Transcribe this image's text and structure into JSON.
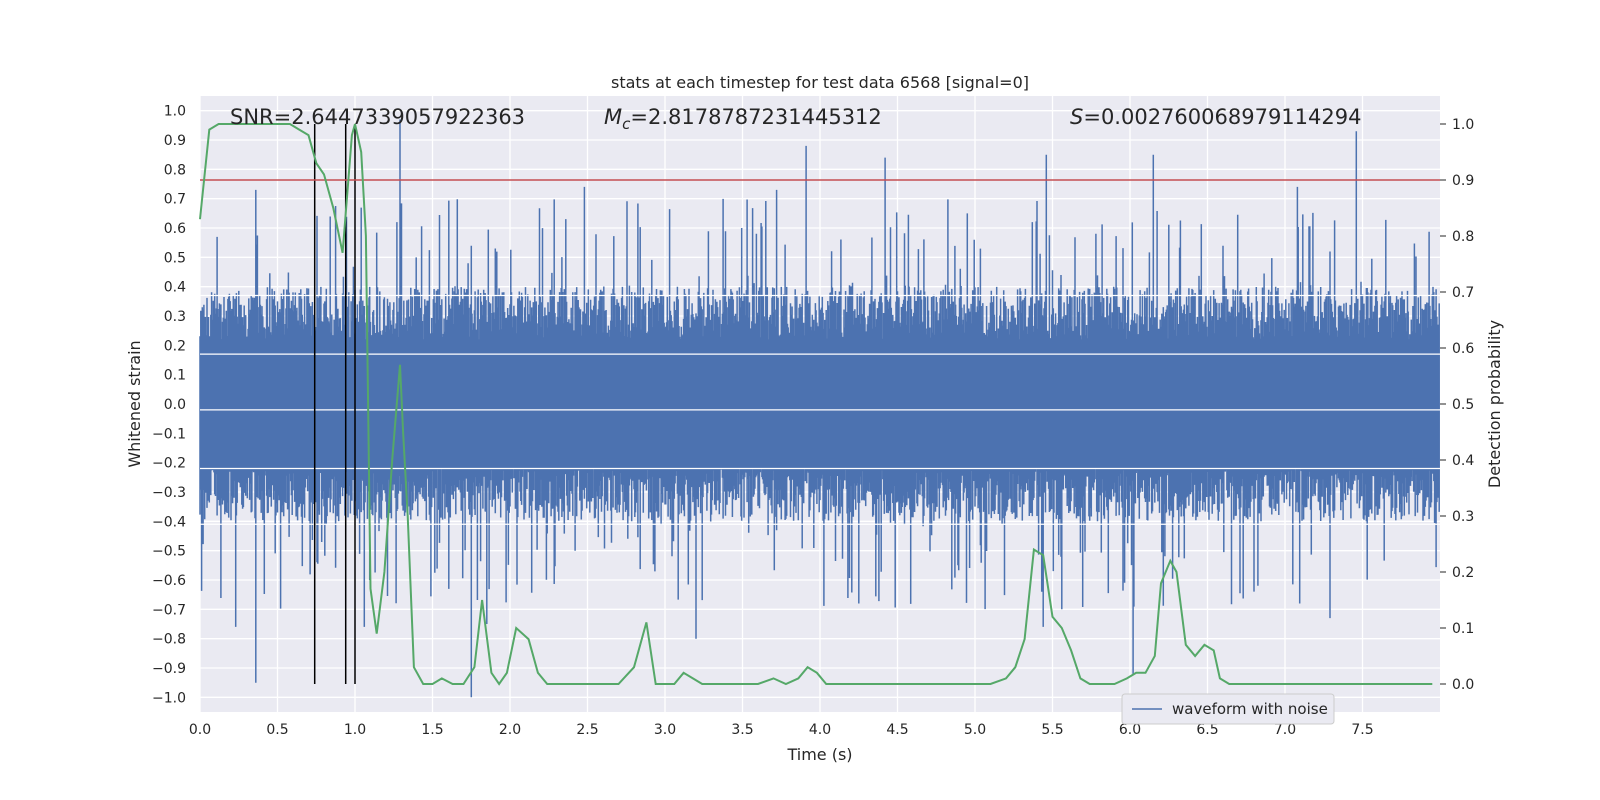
{
  "chart_data": {
    "type": "line",
    "title": "stats at each timestep for test data 6568 [signal=0]",
    "xlabel": "Time (s)",
    "ylabel_left": "Whitened strain",
    "ylabel_right": "Detection probability",
    "xlim": [
      0.0,
      8.0
    ],
    "ylim_left": [
      -1.05,
      1.05
    ],
    "ylim_right": [
      -0.05,
      1.05
    ],
    "x_ticks": [
      "0.0",
      "0.5",
      "1.0",
      "1.5",
      "2.0",
      "2.5",
      "3.0",
      "3.5",
      "4.0",
      "4.5",
      "5.0",
      "5.5",
      "6.0",
      "6.5",
      "7.0",
      "7.5"
    ],
    "x_tick_values": [
      0.0,
      0.5,
      1.0,
      1.5,
      2.0,
      2.5,
      3.0,
      3.5,
      4.0,
      4.5,
      5.0,
      5.5,
      6.0,
      6.5,
      7.0,
      7.5
    ],
    "y_left_ticks": [
      "1.0",
      "0.9",
      "0.8",
      "0.7",
      "0.6",
      "0.5",
      "0.4",
      "0.3",
      "0.2",
      "0.1",
      "0.0",
      "−0.1",
      "−0.2",
      "−0.3",
      "−0.4",
      "−0.5",
      "−0.6",
      "−0.7",
      "−0.8",
      "−0.9",
      "−1.0"
    ],
    "y_left_tick_values": [
      1.0,
      0.9,
      0.8,
      0.7,
      0.6,
      0.5,
      0.4,
      0.3,
      0.2,
      0.1,
      0.0,
      -0.1,
      -0.2,
      -0.3,
      -0.4,
      -0.5,
      -0.6,
      -0.7,
      -0.8,
      -0.9,
      -1.0
    ],
    "y_right_ticks": [
      "1.0",
      "0.9",
      "0.8",
      "0.7",
      "0.6",
      "0.5",
      "0.4",
      "0.3",
      "0.2",
      "0.1",
      "0.0"
    ],
    "y_right_tick_values": [
      1.0,
      0.9,
      0.8,
      0.7,
      0.6,
      0.5,
      0.4,
      0.3,
      0.2,
      0.1,
      0.0
    ],
    "annotations": {
      "snr": "SNR=2.6447339057922363",
      "mc_symbol": "M",
      "mc_sub": "c",
      "mc_value": "=2.8178787231445312",
      "s_symbol": "S",
      "s_value": "=0.002760068979114294"
    },
    "threshold": {
      "value": 0.9,
      "axis": "right",
      "color": "#c44e52"
    },
    "vertical_markers": [
      0.74,
      0.94,
      1.0
    ],
    "waveform": {
      "name": "waveform with noise",
      "color": "#4c72b0",
      "sample_rate": 200,
      "typical_max": 0.4,
      "typical_min": -0.4,
      "spikes": [
        [
          1.29,
          0.97
        ],
        [
          3.91,
          0.88
        ],
        [
          4.42,
          0.84
        ],
        [
          5.46,
          0.85
        ],
        [
          6.15,
          0.85
        ],
        [
          7.46,
          0.93
        ],
        [
          0.36,
          0.73
        ],
        [
          2.48,
          0.74
        ],
        [
          7.08,
          0.74
        ],
        [
          3.72,
          0.73
        ],
        [
          1.75,
          -1.0
        ],
        [
          6.02,
          -0.92
        ],
        [
          0.36,
          -0.95
        ],
        [
          1.85,
          -0.75
        ],
        [
          3.2,
          -0.8
        ],
        [
          0.23,
          -0.76
        ],
        [
          1.06,
          -0.76
        ],
        [
          5.44,
          -0.76
        ],
        [
          7.29,
          -0.73
        ]
      ]
    },
    "detection_probability": {
      "name": "detection probability",
      "color": "#55a868",
      "x": [
        0.0,
        0.06,
        0.12,
        0.2,
        0.3,
        0.4,
        0.5,
        0.58,
        0.64,
        0.7,
        0.75,
        0.8,
        0.86,
        0.92,
        0.98,
        1.0,
        1.04,
        1.07,
        1.1,
        1.14,
        1.19,
        1.24,
        1.29,
        1.31,
        1.34,
        1.38,
        1.44,
        1.5,
        1.56,
        1.63,
        1.7,
        1.77,
        1.82,
        1.88,
        1.93,
        1.98,
        2.04,
        2.12,
        2.18,
        2.24,
        2.3,
        2.4,
        2.5,
        2.6,
        2.7,
        2.8,
        2.88,
        2.94,
        3.0,
        3.06,
        3.12,
        3.18,
        3.24,
        3.3,
        3.4,
        3.5,
        3.6,
        3.7,
        3.78,
        3.86,
        3.92,
        3.98,
        4.04,
        4.1,
        4.2,
        4.3,
        4.4,
        4.6,
        4.8,
        5.0,
        5.1,
        5.2,
        5.26,
        5.32,
        5.38,
        5.44,
        5.5,
        5.56,
        5.62,
        5.68,
        5.74,
        5.8,
        5.9,
        5.98,
        6.04,
        6.1,
        6.16,
        6.2,
        6.26,
        6.3,
        6.36,
        6.42,
        6.48,
        6.54,
        6.58,
        6.64,
        6.7,
        6.76,
        6.8,
        6.9,
        7.0,
        7.1,
        7.3,
        7.5,
        7.7,
        7.85,
        7.95
      ],
      "y": [
        0.83,
        0.99,
        1.0,
        1.0,
        1.0,
        1.0,
        1.0,
        1.0,
        0.99,
        0.98,
        0.93,
        0.91,
        0.85,
        0.77,
        0.98,
        1.0,
        0.95,
        0.8,
        0.17,
        0.09,
        0.2,
        0.4,
        0.57,
        0.45,
        0.3,
        0.03,
        0.0,
        0.0,
        0.01,
        0.0,
        0.0,
        0.03,
        0.15,
        0.02,
        0.0,
        0.02,
        0.1,
        0.08,
        0.02,
        0.0,
        0.0,
        0.0,
        0.0,
        0.0,
        0.0,
        0.03,
        0.11,
        0.0,
        0.0,
        0.0,
        0.02,
        0.01,
        0.0,
        0.0,
        0.0,
        0.0,
        0.0,
        0.01,
        0.0,
        0.01,
        0.03,
        0.02,
        0.0,
        0.0,
        0.0,
        0.0,
        0.0,
        0.0,
        0.0,
        0.0,
        0.0,
        0.01,
        0.03,
        0.08,
        0.24,
        0.23,
        0.12,
        0.1,
        0.06,
        0.01,
        0.0,
        0.0,
        0.0,
        0.01,
        0.02,
        0.02,
        0.05,
        0.18,
        0.22,
        0.2,
        0.07,
        0.05,
        0.07,
        0.06,
        0.01,
        0.0,
        0.0,
        0.0,
        0.0,
        0.0,
        0.0,
        0.0,
        0.0,
        0.0,
        0.0,
        0.0,
        0.0
      ]
    },
    "legend": {
      "label": "waveform with noise",
      "placement": "lower-right"
    },
    "grid": true
  }
}
